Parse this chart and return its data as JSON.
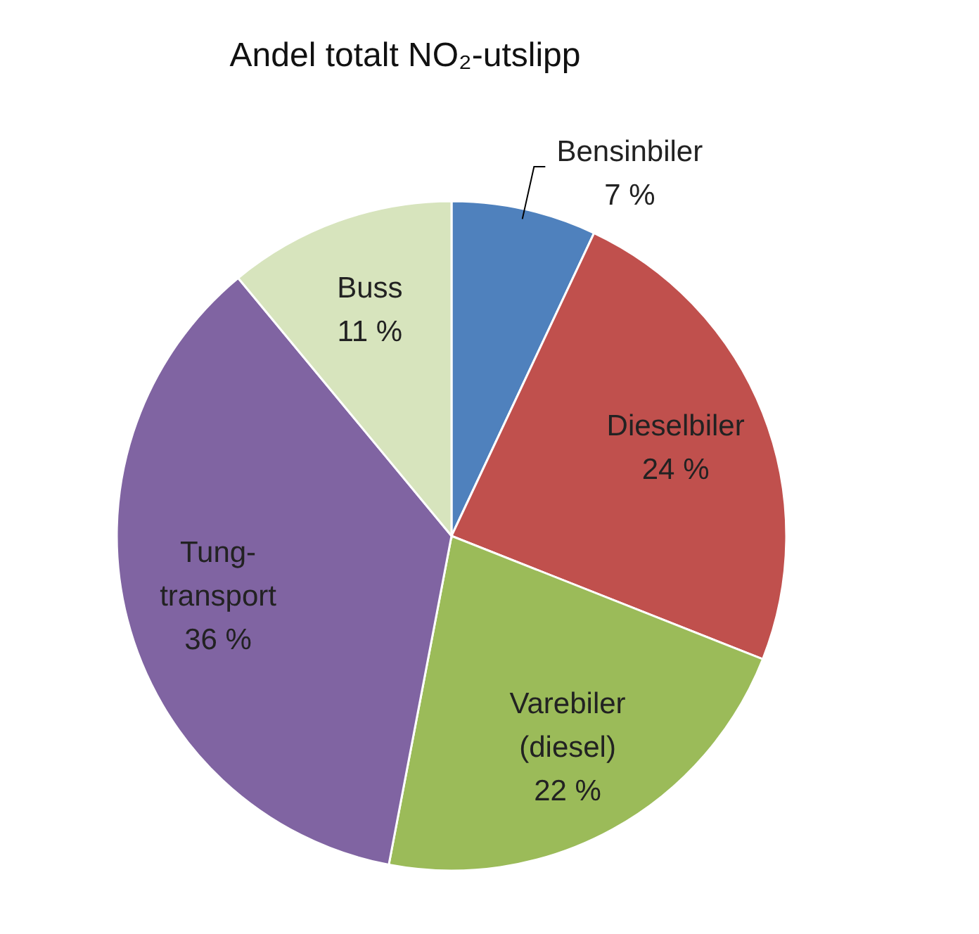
{
  "chart_data": {
    "type": "pie",
    "title": "Andel totalt NO₂-utslipp",
    "categories": [
      "Bensinbiler",
      "Dieselbiler",
      "Varebiler\n(diesel)",
      "Tung-\ntransport",
      "Buss"
    ],
    "values": [
      7,
      24,
      22,
      36,
      11
    ],
    "colors": [
      "#4f81bd",
      "#c0504d",
      "#9bbb59",
      "#8064a2",
      "#d7e4bd"
    ],
    "value_labels": [
      "7 %",
      "24 %",
      "22 %",
      "36 %",
      "11 %"
    ]
  }
}
